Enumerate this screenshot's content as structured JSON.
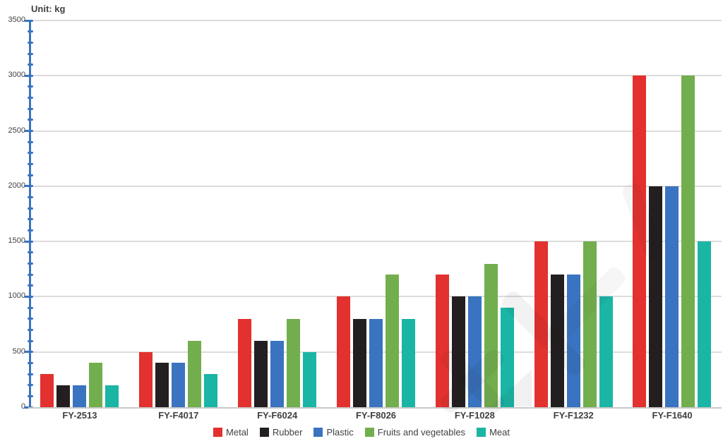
{
  "title": "Unit: kg",
  "chart_data": {
    "type": "bar",
    "title": "Unit: kg",
    "categories": [
      "FY-2513",
      "FY-F4017",
      "FY-F6024",
      "FY-F8026",
      "FY-F1028",
      "FY-F1232",
      "FY-F1640"
    ],
    "series": [
      {
        "name": "Metal",
        "color": "#e2312e",
        "values": [
          300,
          500,
          800,
          1000,
          1200,
          1500,
          3000
        ]
      },
      {
        "name": "Rubber",
        "color": "#231f20",
        "values": [
          200,
          400,
          600,
          800,
          1000,
          1200,
          2000
        ]
      },
      {
        "name": "Plastic",
        "color": "#3a73bf",
        "values": [
          200,
          400,
          600,
          800,
          1000,
          1200,
          2000
        ]
      },
      {
        "name": "Fruits and vegetables",
        "color": "#72ae4e",
        "values": [
          400,
          600,
          800,
          1200,
          1300,
          1500,
          3000
        ]
      },
      {
        "name": "Meat",
        "color": "#1ab5a4",
        "values": [
          200,
          300,
          500,
          800,
          900,
          1000,
          1500
        ]
      }
    ],
    "ylim": [
      0,
      3500
    ],
    "ytick_interval": 500,
    "yminor_tick_interval": 100,
    "ytick_labels": [
      "0",
      "500",
      "1000",
      "1500",
      "2000",
      "2500",
      "3000",
      "3500"
    ],
    "grid": true,
    "legend_position": "bottom",
    "axis_color": "#3a73bf",
    "grid_color": "#dcdcdc",
    "baseline_color": "#c9c9c9",
    "text_color": "#414042"
  }
}
